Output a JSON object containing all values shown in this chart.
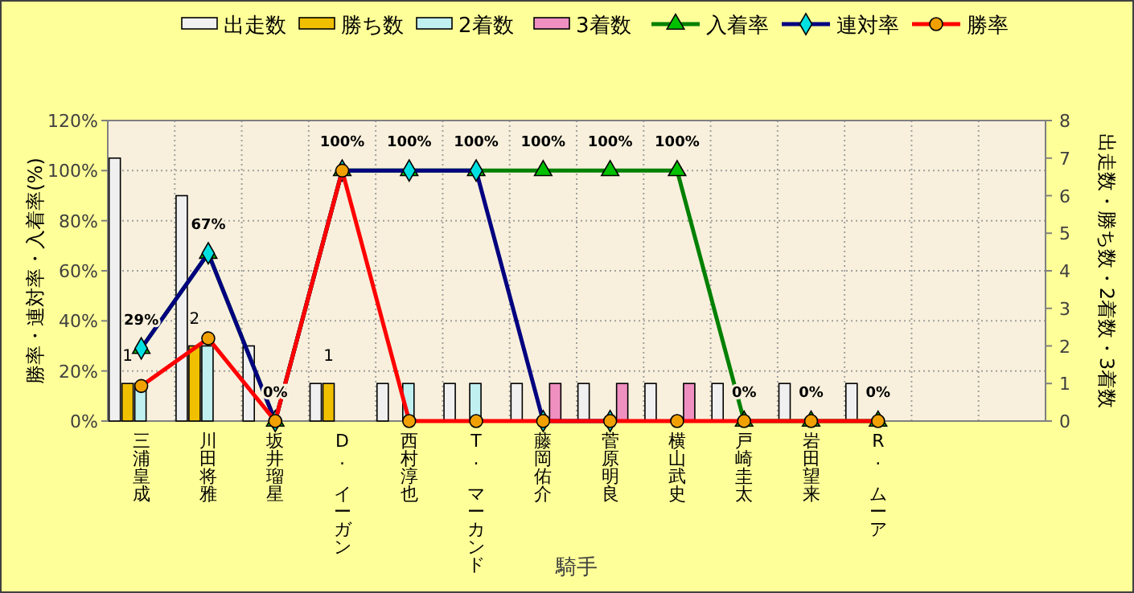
{
  "chart_data": {
    "type": "bar",
    "xlabel": "騎手",
    "ylabel": "勝率・連対率・入着率(%)",
    "y2label": "出走数・勝ち数・2着数・3着数",
    "categories": [
      "三浦皇成",
      "川田将雅",
      "坂井瑠星",
      "D. イーガン",
      "西村淳也",
      "T. マーカンド",
      "藤岡佑介",
      "菅原明良",
      "横山武史",
      "戸崎圭太",
      "岩田望来",
      "R. ムーア",
      null,
      null
    ],
    "series": [
      {
        "name": "出走数",
        "type": "bar",
        "axis": "y2",
        "color": "#f0f0f0",
        "values": [
          7,
          6,
          2,
          1,
          1,
          1,
          1,
          1,
          1,
          1,
          1,
          1,
          null,
          null
        ]
      },
      {
        "name": "勝ち数",
        "axis": "y2",
        "color": "#f0c000",
        "values": [
          1,
          2,
          0,
          1,
          0,
          0,
          0,
          0,
          0,
          0,
          0,
          0,
          null,
          null
        ],
        "value_labels": [
          "1",
          "2",
          null,
          "1",
          null,
          null,
          null,
          null,
          null,
          null,
          null,
          null,
          null,
          null
        ]
      },
      {
        "name": "2着数",
        "axis": "y2",
        "color": "#c0f0f0",
        "values": [
          1,
          2,
          0,
          0,
          1,
          1,
          0,
          0,
          0,
          0,
          0,
          0,
          null,
          null
        ]
      },
      {
        "name": "3着数",
        "axis": "y2",
        "color": "#f090c0",
        "values": [
          0,
          0,
          0,
          0,
          0,
          0,
          1,
          1,
          1,
          0,
          0,
          0,
          null,
          null
        ]
      },
      {
        "name": "入着率",
        "type": "line",
        "color": "#008000",
        "marker": "triangle",
        "values": [
          29,
          67,
          0,
          100,
          100,
          100,
          100,
          100,
          100,
          0,
          0,
          0,
          null,
          null
        ],
        "value_labels": [
          "29%",
          "67%",
          "0%",
          "100%",
          "100%",
          "100%",
          "100%",
          "100%",
          "100%",
          "0%",
          "0%",
          "0%",
          null,
          null
        ]
      },
      {
        "name": "連対率",
        "type": "line",
        "color": "#000080",
        "marker": "diamond",
        "values": [
          29,
          67,
          0,
          100,
          100,
          100,
          0,
          0,
          null,
          null,
          null,
          null,
          null,
          null
        ]
      },
      {
        "name": "勝率",
        "type": "line",
        "color": "#ff0000",
        "marker": "circle",
        "values": [
          14,
          33,
          0,
          100,
          0,
          0,
          0,
          0,
          0,
          0,
          0,
          0,
          null,
          null
        ]
      }
    ],
    "ylim": [
      0,
      120
    ],
    "yticks": [
      {
        "value": 0,
        "label": "0%"
      },
      {
        "value": 20,
        "label": "20%"
      },
      {
        "value": 40,
        "label": "40%"
      },
      {
        "value": 60,
        "label": "60%"
      },
      {
        "value": 80,
        "label": "80%"
      },
      {
        "value": 100,
        "label": "100%"
      },
      {
        "value": 120,
        "label": "120%"
      }
    ],
    "y2lim": [
      0,
      8
    ],
    "y2ticks": [
      0,
      1,
      2,
      3,
      4,
      5,
      6,
      7,
      8
    ],
    "grid": true,
    "legend": "top"
  }
}
